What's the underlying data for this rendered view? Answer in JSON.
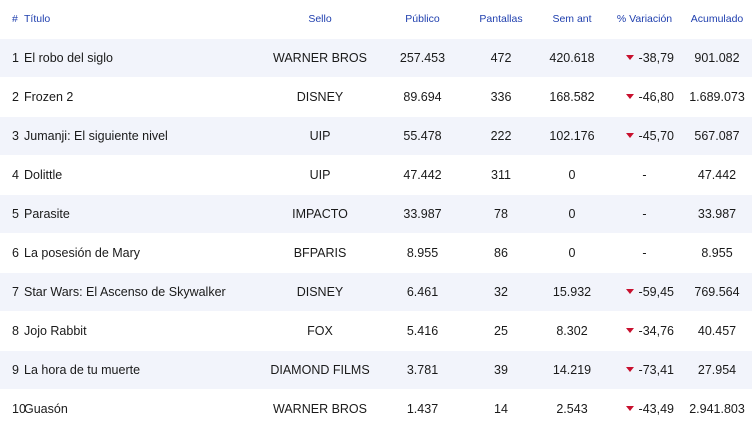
{
  "headers": {
    "rank": "#",
    "title": "Título",
    "label": "Sello",
    "public": "Público",
    "screens": "Pantallas",
    "prev_week": "Sem ant",
    "variation": "% Variación",
    "cumulative": "Acumulado"
  },
  "rows": [
    {
      "rank": "1",
      "title": "El robo del siglo",
      "label": "WARNER BROS",
      "public": "257.453",
      "screens": "472",
      "prev_week": "420.618",
      "variation": "-38,79",
      "down": true,
      "cumulative": "901.082"
    },
    {
      "rank": "2",
      "title": "Frozen 2",
      "label": "DISNEY",
      "public": "89.694",
      "screens": "336",
      "prev_week": "168.582",
      "variation": "-46,80",
      "down": true,
      "cumulative": "1.689.073"
    },
    {
      "rank": "3",
      "title": "Jumanji: El siguiente nivel",
      "label": "UIP",
      "public": "55.478",
      "screens": "222",
      "prev_week": "102.176",
      "variation": "-45,70",
      "down": true,
      "cumulative": "567.087"
    },
    {
      "rank": "4",
      "title": "Dolittle",
      "label": "UIP",
      "public": "47.442",
      "screens": "311",
      "prev_week": "0",
      "variation": "-",
      "down": false,
      "cumulative": "47.442"
    },
    {
      "rank": "5",
      "title": "Parasite",
      "label": "IMPACTO",
      "public": "33.987",
      "screens": "78",
      "prev_week": "0",
      "variation": "-",
      "down": false,
      "cumulative": "33.987"
    },
    {
      "rank": "6",
      "title": "La posesión de Mary",
      "label": "BFPARIS",
      "public": "8.955",
      "screens": "86",
      "prev_week": "0",
      "variation": "-",
      "down": false,
      "cumulative": "8.955"
    },
    {
      "rank": "7",
      "title": "Star Wars: El Ascenso de Skywalker",
      "label": "DISNEY",
      "public": "6.461",
      "screens": "32",
      "prev_week": "15.932",
      "variation": "-59,45",
      "down": true,
      "cumulative": "769.564"
    },
    {
      "rank": "8",
      "title": "Jojo Rabbit",
      "label": "FOX",
      "public": "5.416",
      "screens": "25",
      "prev_week": "8.302",
      "variation": "-34,76",
      "down": true,
      "cumulative": "40.457"
    },
    {
      "rank": "9",
      "title": "La hora de tu muerte",
      "label": "DIAMOND FILMS",
      "public": "3.781",
      "screens": "39",
      "prev_week": "14.219",
      "variation": "-73,41",
      "down": true,
      "cumulative": "27.954"
    },
    {
      "rank": "10",
      "title": "Guasón",
      "label": "WARNER BROS",
      "public": "1.437",
      "screens": "14",
      "prev_week": "2.543",
      "variation": "-43,49",
      "down": true,
      "cumulative": "2.941.803"
    }
  ],
  "colors": {
    "header_text": "#1f3fae",
    "stripe": "#f2f4fb",
    "down_arrow": "#c8102e"
  },
  "icons": {
    "variation_down": "triangle-down-icon"
  }
}
